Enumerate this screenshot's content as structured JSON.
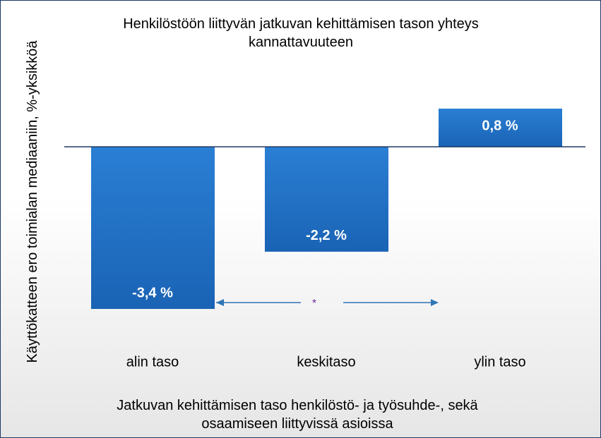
{
  "chart_data": {
    "type": "bar",
    "title": "Henkilöstöön liittyvän jatkuvan kehittämisen tason yhteys kannattavuuteen",
    "x_label": "Jatkuvan kehittämisen taso henkilöstö- ja työsuhde-, sekä osaamiseen liittyvissä asioissa",
    "y_label": "Käyttökatteen ero toimialan mediaaniin, %-yksikköä",
    "categories": [
      "alin taso",
      "keskitaso",
      "ylin taso"
    ],
    "values": [
      -3.4,
      -2.2,
      0.8
    ],
    "value_labels": [
      "-3,4 %",
      "-2,2 %",
      "0,8 %"
    ],
    "color": "#1f6fc5",
    "annotation": "*"
  }
}
